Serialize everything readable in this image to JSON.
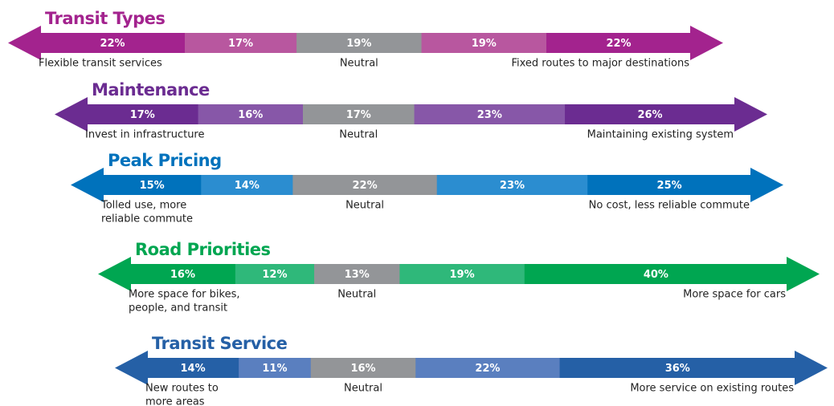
{
  "chart_data": [
    {
      "type": "bar",
      "title": "Transit Types",
      "values": [
        22,
        17,
        19,
        19,
        22
      ],
      "value_labels": [
        "22%",
        "17%",
        "19%",
        "19%",
        "22%"
      ],
      "colors": [
        "#a3238e",
        "#b8579f",
        "#939598",
        "#b8579f",
        "#a3238e"
      ],
      "left_label": [
        "Flexible transit services"
      ],
      "neutral_label": "Neutral",
      "right_label": [
        "Fixed routes to major destinations"
      ]
    },
    {
      "type": "bar",
      "title": "Maintenance",
      "values": [
        17,
        16,
        17,
        23,
        26
      ],
      "value_labels": [
        "17%",
        "16%",
        "17%",
        "23%",
        "26%"
      ],
      "colors": [
        "#6b2c91",
        "#8757a8",
        "#939598",
        "#8757a8",
        "#6b2c91"
      ],
      "left_label": [
        "Invest in infrastructure"
      ],
      "neutral_label": "Neutral",
      "right_label": [
        "Maintaining existing system"
      ]
    },
    {
      "type": "bar",
      "title": "Peak Pricing",
      "values": [
        15,
        14,
        22,
        23,
        25
      ],
      "value_labels": [
        "15%",
        "14%",
        "22%",
        "23%",
        "25%"
      ],
      "colors": [
        "#0072bc",
        "#2b8dd0",
        "#939598",
        "#2b8dd0",
        "#0072bc"
      ],
      "left_label": [
        "Tolled use, more",
        "reliable commute"
      ],
      "neutral_label": "Neutral",
      "right_label": [
        "No cost, less reliable commute"
      ]
    },
    {
      "type": "bar",
      "title": "Road Priorities",
      "values": [
        16,
        12,
        13,
        19,
        40
      ],
      "value_labels": [
        "16%",
        "12%",
        "13%",
        "19%",
        "40%"
      ],
      "colors": [
        "#00a651",
        "#2fb87a",
        "#939598",
        "#2fb87a",
        "#00a651"
      ],
      "left_label": [
        "More space for bikes,",
        "people, and transit"
      ],
      "neutral_label": "Neutral",
      "right_label": [
        "More space for cars"
      ]
    },
    {
      "type": "bar",
      "title": "Transit Service",
      "values": [
        14,
        11,
        16,
        22,
        36
      ],
      "value_labels": [
        "14%",
        "11%",
        "16%",
        "22%",
        "36%"
      ],
      "colors": [
        "#2560a6",
        "#5a7fbf",
        "#939598",
        "#5a7fbf",
        "#2560a6"
      ],
      "left_label": [
        "New routes to",
        "more areas"
      ],
      "neutral_label": "Neutral",
      "right_label": [
        "More service on existing routes"
      ]
    }
  ]
}
